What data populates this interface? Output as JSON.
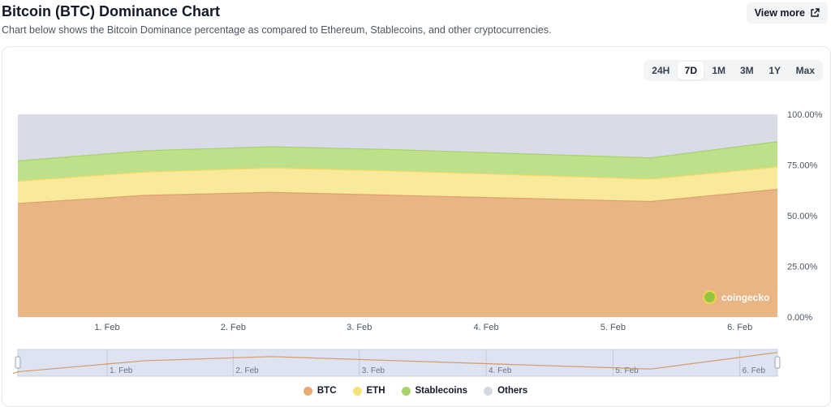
{
  "header": {
    "title": "Bitcoin (BTC) Dominance Chart",
    "subtitle": "Chart below shows the Bitcoin Dominance percentage as compared to Ethereum, Stablecoins, and other cryptocurrencies.",
    "view_more_label": "View more"
  },
  "range_buttons": [
    "24H",
    "7D",
    "1M",
    "3M",
    "1Y",
    "Max"
  ],
  "active_range": "7D",
  "watermark": "coingecko",
  "colors": {
    "btc": "#e9b584",
    "eth": "#f9e99a",
    "stablecoins": "#bfe08a",
    "others": "#d9dce8",
    "line_btc": "#e0a06c"
  },
  "chart_data": {
    "type": "area",
    "stacked": true,
    "x": [
      "Jan 31 08:00",
      "Feb 1 08:00",
      "Feb 2 08:00",
      "Feb 3 08:00",
      "Feb 4 08:00",
      "Feb 5 08:00",
      "Feb 6 08:00"
    ],
    "x_tick_labels": [
      "1. Feb",
      "2. Feb",
      "3. Feb",
      "4. Feb",
      "5. Feb",
      "6. Feb"
    ],
    "y_tick_labels": [
      "100.00%",
      "75.00%",
      "50.00%",
      "25.00%",
      "0.00%"
    ],
    "ylim": [
      0,
      100
    ],
    "series": [
      {
        "name": "BTC",
        "values": [
          56,
          60,
          61.5,
          60,
          58.5,
          57,
          63
        ]
      },
      {
        "name": "ETH",
        "values": [
          11,
          11.5,
          12,
          12,
          11.5,
          11,
          11
        ]
      },
      {
        "name": "Stablecoins",
        "values": [
          10,
          10.5,
          10.5,
          10.5,
          10.5,
          10.5,
          12.5
        ]
      },
      {
        "name": "Others",
        "values": [
          23,
          18,
          16,
          17.5,
          19.5,
          21.5,
          13.5
        ]
      }
    ],
    "navigator_labels": [
      "1. Feb",
      "2. Feb",
      "3. Feb",
      "4. Feb",
      "5. Feb",
      "6. Feb"
    ],
    "legend": [
      "BTC",
      "ETH",
      "Stablecoins",
      "Others"
    ],
    "legend_position": "bottom-center",
    "grid": false
  }
}
